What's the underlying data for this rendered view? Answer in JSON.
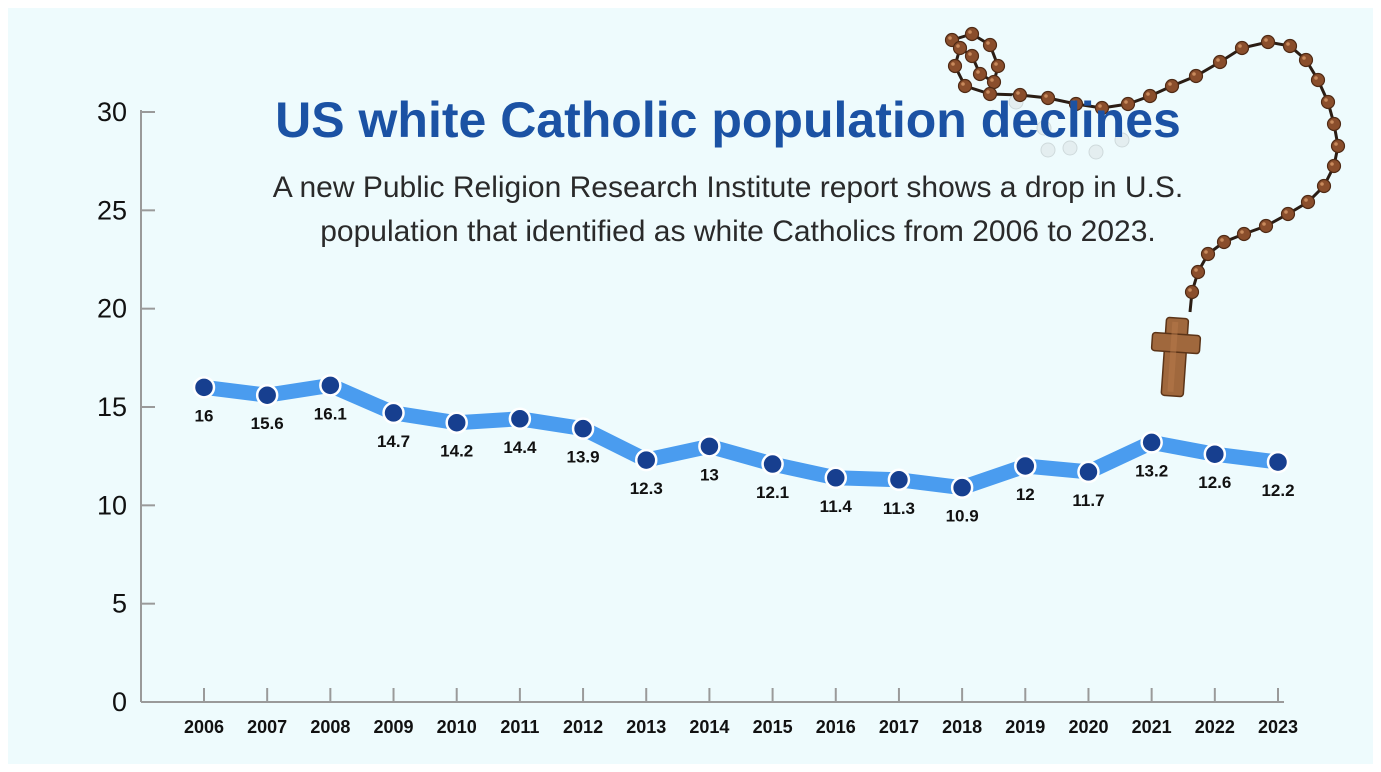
{
  "colors": {
    "background": "#eefbfd",
    "title": "#1b52a4",
    "line": "#4a9cef",
    "marker": "#173f8f",
    "axis": "#9a9a9a"
  },
  "decoration": {
    "rosary": "rosary-beads-with-wooden-cross"
  },
  "chart_data": {
    "type": "line",
    "title": "US white Catholic population declines",
    "subtitle": "A new Public Religion Research Institute report shows a drop in U.S. population that identified as white Catholics from 2006 to 2023.",
    "subtitle_lines": [
      "A new Public Religion Research Institute report shows a drop in U.S.",
      "population that identified as white Catholics from 2006 to 2023."
    ],
    "xlabel": "",
    "ylabel": "",
    "x": [
      "2006",
      "2007",
      "2008",
      "2009",
      "2010",
      "2011",
      "2012",
      "2013",
      "2014",
      "2015",
      "2016",
      "2017",
      "2018",
      "2019",
      "2020",
      "2021",
      "2022",
      "2023"
    ],
    "series": [
      {
        "values": [
          16,
          15.6,
          16.1,
          14.7,
          14.2,
          14.4,
          13.9,
          12.3,
          13,
          12.1,
          11.4,
          11.3,
          10.9,
          12,
          11.7,
          13.2,
          12.6,
          12.2
        ],
        "labels": [
          "16",
          "15.6",
          "16.1",
          "14.7",
          "14.2",
          "14.4",
          "13.9",
          "12.3",
          "13",
          "12.1",
          "11.4",
          "11.3",
          "10.9",
          "12",
          "11.7",
          "13.2",
          "12.6",
          "12.2"
        ]
      }
    ],
    "ylim": [
      0,
      30
    ],
    "yticks": [
      0,
      5,
      10,
      15,
      20,
      25,
      30
    ],
    "grid": false,
    "legend": "none"
  }
}
